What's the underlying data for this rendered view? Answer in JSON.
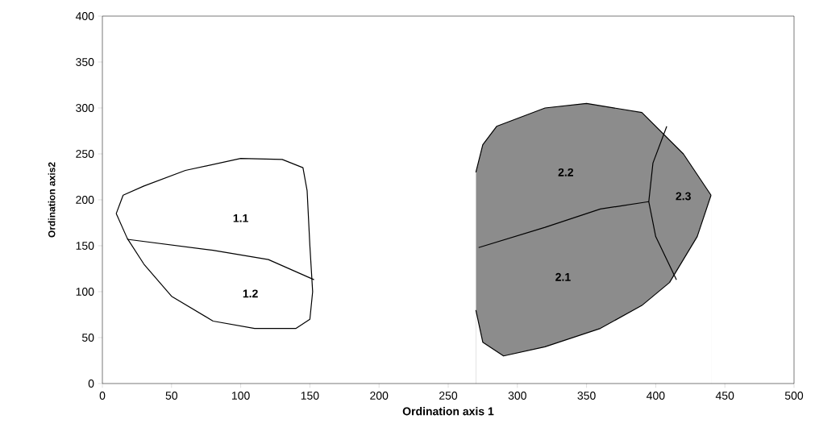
{
  "chart_data": {
    "type": "line",
    "xlabel": "Ordination axis 1",
    "ylabel": "Ordination axis2",
    "xlim": [
      0,
      500
    ],
    "xticks": [
      0,
      50,
      100,
      150,
      200,
      250,
      300,
      350,
      400,
      450,
      500
    ],
    "ylim": [
      0,
      400
    ],
    "yticks": [
      0,
      50,
      100,
      150,
      200,
      250,
      300,
      350,
      400
    ],
    "grid": false,
    "marker": "none",
    "line_style": "solid",
    "series": [
      {
        "type": "area",
        "color": "#8c8c8c",
        "x": [
          270,
          275,
          285,
          320,
          350,
          390,
          420,
          440
        ],
        "values": [
          230,
          260,
          280,
          300,
          305,
          295,
          250,
          205
        ]
      },
      {
        "type": "area",
        "color": "#ffffff",
        "x": [
          270,
          275,
          290,
          320,
          360,
          390,
          410,
          430,
          440
        ],
        "values": [
          80,
          45,
          30,
          40,
          60,
          85,
          110,
          160,
          205
        ]
      },
      {
        "type": "area",
        "color": "#ffffff",
        "x": [
          10,
          15,
          30,
          60,
          100,
          130,
          145,
          148,
          150,
          152
        ],
        "values": [
          185,
          205,
          215,
          232,
          245,
          244,
          235,
          210,
          150,
          100
        ]
      },
      {
        "type": "area",
        "color": "#ffffff",
        "x": [
          10,
          18,
          30,
          50,
          80,
          110,
          140,
          150,
          152
        ],
        "values": [
          185,
          158,
          130,
          95,
          68,
          60,
          60,
          70,
          100
        ]
      },
      {
        "color": "#000000",
        "x": [
          18,
          80,
          120,
          153
        ],
        "values": [
          157,
          145,
          135,
          113
        ]
      },
      {
        "color": "#000000",
        "x": [
          272,
          320,
          360,
          395,
          400,
          415
        ],
        "values": [
          148,
          170,
          190,
          198,
          160,
          113
        ]
      },
      {
        "color": "#000000",
        "x": [
          395,
          398,
          408
        ],
        "values": [
          198,
          240,
          280
        ]
      }
    ],
    "annotations": [
      "1.1",
      "1.2",
      "2.2",
      "2.1",
      "2.3"
    ]
  }
}
